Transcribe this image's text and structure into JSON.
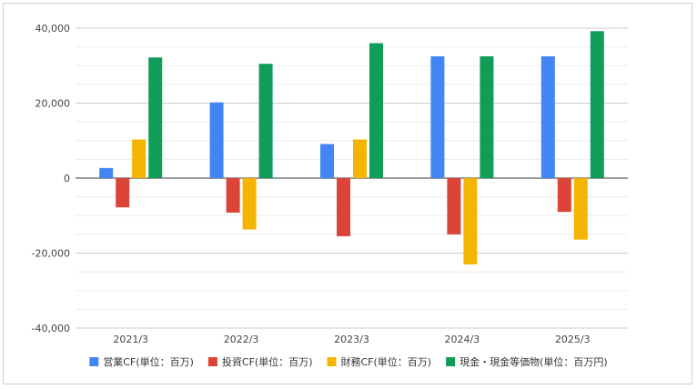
{
  "chart_data": {
    "type": "bar",
    "categories": [
      "2021/3",
      "2022/3",
      "2023/3",
      "2024/3",
      "2025/3"
    ],
    "series": [
      {
        "name": "営業CF(単位：百万)",
        "color": "#4285f4",
        "values": [
          2700,
          20200,
          9100,
          32500,
          32500
        ]
      },
      {
        "name": "投資CF(単位：百万)",
        "color": "#db4437",
        "values": [
          -7800,
          -9200,
          -15500,
          -15000,
          -9000
        ]
      },
      {
        "name": "財務CF(単位：百万)",
        "color": "#f4b400",
        "values": [
          10300,
          -13700,
          10300,
          -23000,
          -16400
        ]
      },
      {
        "name": "現金・現金等価物(単位：百万円)",
        "color": "#0f9d58",
        "values": [
          32200,
          30500,
          36000,
          32500,
          39200
        ]
      }
    ],
    "ylim": [
      -40000,
      40000
    ],
    "yticks": [
      "40,000",
      "20,000",
      "0",
      "-20,000",
      "-40,000"
    ],
    "ytick_values": [
      40000,
      20000,
      0,
      -20000,
      -40000
    ],
    "grid": true,
    "legend_position": "bottom"
  }
}
